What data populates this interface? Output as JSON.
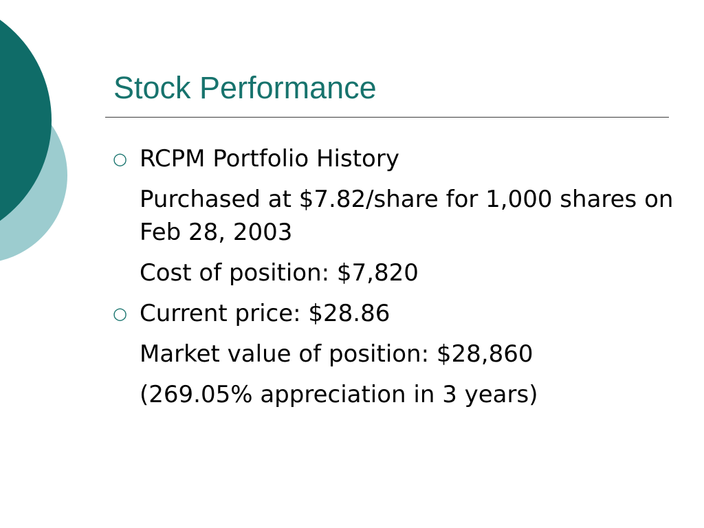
{
  "slide": {
    "title": "Stock Performance",
    "accent_color": "#17736d",
    "deco_colors": [
      "#0f6c68",
      "#9ccccf"
    ],
    "bullet_icon": "hollow-circle-bullet",
    "lines": [
      {
        "text": "RCPM Portfolio History",
        "bullet": "○"
      },
      {
        "text": "Purchased at $7.82/share for 1,000 shares on Feb 28, 2003",
        "bullet": ""
      },
      {
        "text": "Cost of position: $7,820",
        "bullet": ""
      },
      {
        "text": "Current price: $28.86",
        "bullet": "○"
      },
      {
        "text": "Market value of position: $28,860",
        "bullet": ""
      },
      {
        "text": "(269.05% appreciation in 3 years)",
        "bullet": ""
      }
    ]
  }
}
